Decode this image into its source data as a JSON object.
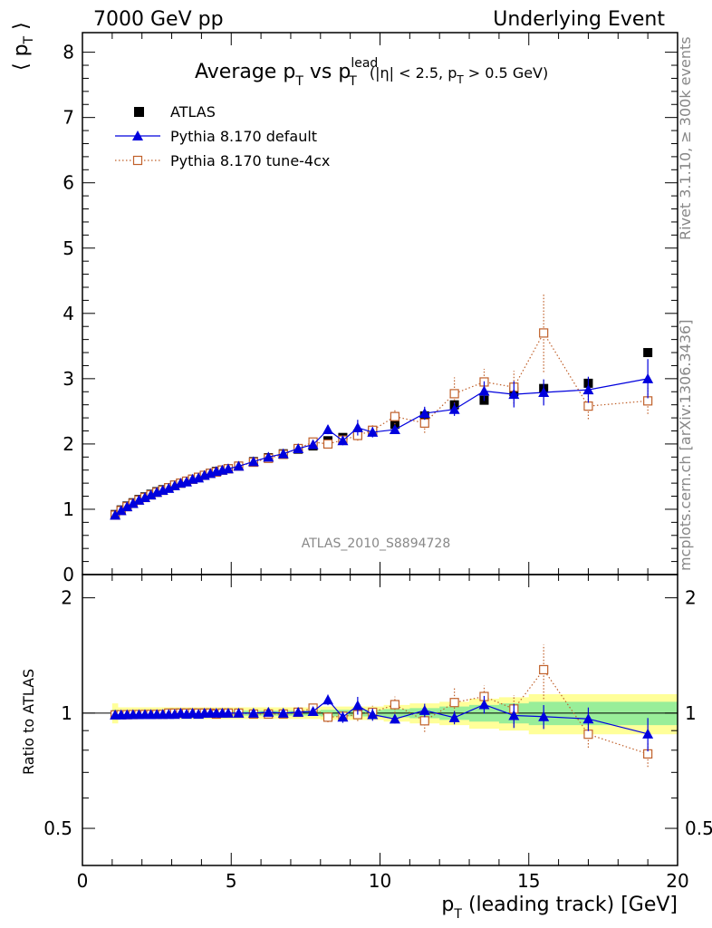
{
  "header": {
    "left": "7000 GeV pp",
    "right": "Underlying Event"
  },
  "side_labels": {
    "rivet": "Rivet 3.1.10, ≥ 300k events",
    "mcplots": "mcplots.cern.ch [arXiv:1306.3436]"
  },
  "watermark": "ATLAS_2010_S8894728",
  "chart_data": {
    "type": "line",
    "title": {
      "main": "Average p",
      "main_sub": "T",
      "vs": " vs p",
      "vs_sup": "lead",
      "vs_sub": "T",
      "cuts_a": "(|η| < 2.5, p",
      "cuts_sub": "T",
      "cuts_b": " > 0.5 GeV)"
    },
    "ylabel_top": {
      "open": "⟨ p",
      "sub": "T",
      "close": " ⟩"
    },
    "ylabel_bottom": "Ratio to ATLAS",
    "xlabel": {
      "p": "p",
      "sub": "T",
      "rest": " (leading track) [GeV]"
    },
    "xlim": [
      0,
      20
    ],
    "ylim_top": [
      0,
      8.3
    ],
    "ylim_bottom_log": [
      0.4,
      2.3
    ],
    "x_ticks": [
      "0",
      "5",
      "10",
      "15",
      "20"
    ],
    "y_ticks_top": [
      "0",
      "1",
      "2",
      "3",
      "4",
      "5",
      "6",
      "7",
      "8"
    ],
    "y_ticks_bottom": [
      "0.5",
      "1",
      "2"
    ],
    "x": [
      1.1,
      1.3,
      1.5,
      1.7,
      1.9,
      2.1,
      2.3,
      2.5,
      2.7,
      2.9,
      3.1,
      3.3,
      3.5,
      3.7,
      3.9,
      4.1,
      4.3,
      4.5,
      4.7,
      4.9,
      5.25,
      5.75,
      6.25,
      6.75,
      7.25,
      7.75,
      8.25,
      8.75,
      9.25,
      9.75,
      10.5,
      11.5,
      12.5,
      13.5,
      14.5,
      15.5,
      17,
      19
    ],
    "series": [
      {
        "name": "ATLAS",
        "color": "#000000",
        "marker": "square-filled",
        "values": [
          0.92,
          0.99,
          1.05,
          1.1,
          1.15,
          1.19,
          1.23,
          1.27,
          1.3,
          1.33,
          1.37,
          1.4,
          1.43,
          1.46,
          1.49,
          1.52,
          1.55,
          1.58,
          1.6,
          1.62,
          1.66,
          1.73,
          1.79,
          1.85,
          1.92,
          1.97,
          2.05,
          2.1,
          2.15,
          2.2,
          2.3,
          2.43,
          2.6,
          2.67,
          2.8,
          2.85,
          2.93,
          3.4
        ]
      },
      {
        "name": "Pythia 8.170 default",
        "color": "#0000dd",
        "marker": "triangle-filled",
        "values": [
          0.91,
          0.98,
          1.04,
          1.09,
          1.14,
          1.18,
          1.22,
          1.26,
          1.29,
          1.32,
          1.36,
          1.4,
          1.42,
          1.46,
          1.48,
          1.52,
          1.55,
          1.58,
          1.6,
          1.62,
          1.66,
          1.73,
          1.8,
          1.85,
          1.93,
          1.99,
          2.22,
          2.05,
          2.25,
          2.18,
          2.22,
          2.47,
          2.53,
          2.81,
          2.76,
          2.79,
          2.83,
          3.0
        ],
        "errors": [
          0.01,
          0.01,
          0.01,
          0.01,
          0.01,
          0.01,
          0.01,
          0.01,
          0.01,
          0.01,
          0.01,
          0.01,
          0.01,
          0.01,
          0.01,
          0.01,
          0.01,
          0.01,
          0.01,
          0.01,
          0.02,
          0.02,
          0.03,
          0.03,
          0.04,
          0.05,
          0.07,
          0.07,
          0.12,
          0.08,
          0.06,
          0.1,
          0.1,
          0.15,
          0.2,
          0.2,
          0.2,
          0.3
        ]
      },
      {
        "name": "Pythia 8.170 tune-4cx",
        "color": "#c0602a",
        "marker": "square-open",
        "line": "dotted",
        "values": [
          0.91,
          0.98,
          1.04,
          1.09,
          1.14,
          1.18,
          1.22,
          1.26,
          1.29,
          1.33,
          1.37,
          1.4,
          1.43,
          1.46,
          1.49,
          1.52,
          1.55,
          1.57,
          1.6,
          1.62,
          1.66,
          1.72,
          1.78,
          1.84,
          1.93,
          2.03,
          2.0,
          2.06,
          2.13,
          2.21,
          2.42,
          2.32,
          2.77,
          2.95,
          2.87,
          3.7,
          2.58,
          2.66
        ],
        "errors": [
          0.01,
          0.01,
          0.01,
          0.01,
          0.01,
          0.01,
          0.01,
          0.01,
          0.01,
          0.01,
          0.01,
          0.01,
          0.01,
          0.01,
          0.01,
          0.01,
          0.01,
          0.01,
          0.01,
          0.01,
          0.02,
          0.02,
          0.03,
          0.03,
          0.04,
          0.05,
          0.06,
          0.06,
          0.08,
          0.09,
          0.12,
          0.15,
          0.25,
          0.2,
          0.25,
          0.6,
          0.2,
          0.2
        ]
      }
    ],
    "ratio_band_inner": [
      0.02,
      0.015,
      0.015,
      0.015,
      0.015,
      0.015,
      0.015,
      0.015,
      0.015,
      0.015,
      0.015,
      0.015,
      0.015,
      0.015,
      0.015,
      0.015,
      0.015,
      0.015,
      0.015,
      0.015,
      0.015,
      0.015,
      0.015,
      0.015,
      0.015,
      0.015,
      0.02,
      0.02,
      0.02,
      0.02,
      0.025,
      0.03,
      0.04,
      0.05,
      0.06,
      0.07,
      0.07,
      0.07
    ],
    "ratio_band_outer": [
      0.06,
      0.035,
      0.035,
      0.035,
      0.035,
      0.035,
      0.035,
      0.035,
      0.035,
      0.035,
      0.035,
      0.035,
      0.035,
      0.035,
      0.035,
      0.035,
      0.035,
      0.035,
      0.035,
      0.035,
      0.035,
      0.035,
      0.035,
      0.035,
      0.035,
      0.035,
      0.04,
      0.04,
      0.04,
      0.04,
      0.05,
      0.06,
      0.07,
      0.09,
      0.1,
      0.12,
      0.12,
      0.12
    ]
  }
}
